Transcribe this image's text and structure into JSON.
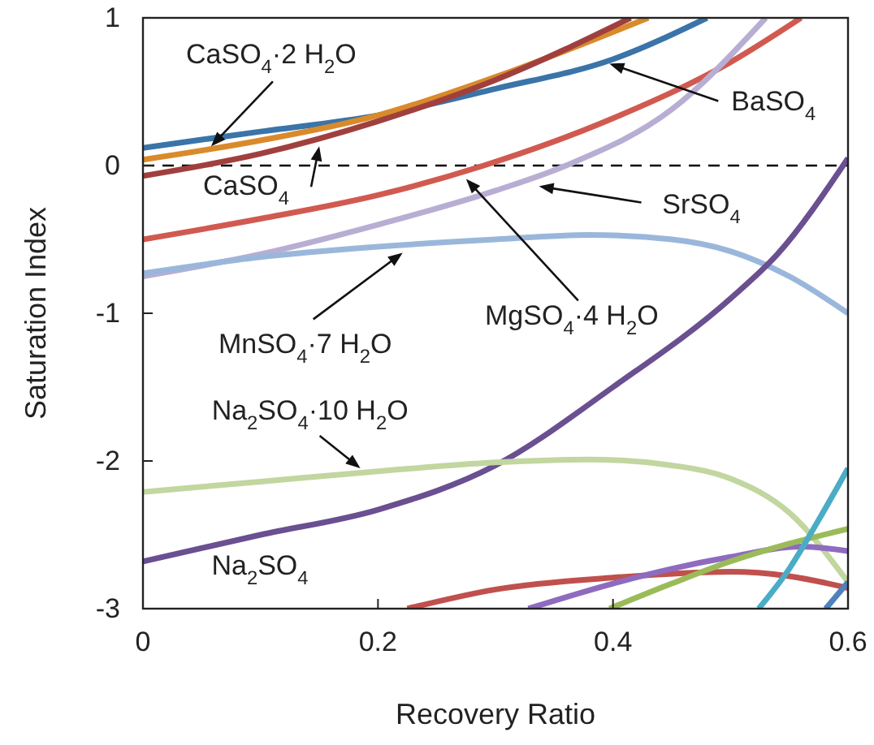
{
  "chart_data": {
    "type": "line",
    "xlabel": "Recovery Ratio",
    "ylabel": "Saturation Index",
    "xlim": [
      0,
      0.6
    ],
    "ylim": [
      -3,
      1
    ],
    "xticks": [
      0,
      0.2,
      0.4,
      0.6
    ],
    "yticks": [
      -3,
      -2,
      -1,
      0,
      1
    ],
    "grid": false,
    "marker": "none",
    "line_style": "solid",
    "ref_lines": [
      {
        "axis": "y",
        "value": 0,
        "color": "#000000",
        "line_style": "dashed"
      }
    ],
    "series": [
      {
        "color": "#3a74a8",
        "x": [
          0,
          0.1,
          0.2,
          0.3,
          0.4,
          0.48
        ],
        "values": [
          0.12,
          0.23,
          0.34,
          0.52,
          0.72,
          1
        ]
      },
      {
        "color": "#d98a2b",
        "x": [
          0,
          0.1,
          0.2,
          0.3,
          0.43
        ],
        "values": [
          0.04,
          0.17,
          0.34,
          0.6,
          1
        ]
      },
      {
        "color": "#a0403e",
        "x": [
          0,
          0.1,
          0.2,
          0.3,
          0.415
        ],
        "values": [
          -0.07,
          0.08,
          0.3,
          0.58,
          1
        ]
      },
      {
        "color": "#d15a50",
        "x": [
          0,
          0.1,
          0.2,
          0.29,
          0.4,
          0.5,
          0.56
        ],
        "values": [
          -0.5,
          -0.36,
          -0.2,
          0,
          0.32,
          0.7,
          1
        ]
      },
      {
        "color": "#b8aed3",
        "x": [
          0,
          0.1,
          0.2,
          0.3,
          0.36,
          0.45,
          0.53
        ],
        "values": [
          -0.75,
          -0.6,
          -0.4,
          -0.17,
          0,
          0.38,
          1
        ]
      },
      {
        "color": "#9ab7db",
        "x": [
          0,
          0.1,
          0.2,
          0.3,
          0.38,
          0.45,
          0.5,
          0.55,
          0.6
        ],
        "values": [
          -0.73,
          -0.62,
          -0.55,
          -0.5,
          -0.47,
          -0.5,
          -0.58,
          -0.75,
          -1
        ]
      },
      {
        "color": "#6a4f91",
        "x": [
          0,
          0.1,
          0.2,
          0.3,
          0.4,
          0.5,
          0.54,
          0.6
        ],
        "values": [
          -2.68,
          -2.5,
          -2.33,
          -2.03,
          -1.5,
          -0.9,
          -0.6,
          0.05
        ]
      },
      {
        "color": "#c2d6a0",
        "x": [
          0,
          0.1,
          0.2,
          0.3,
          0.38,
          0.45,
          0.5,
          0.55,
          0.6
        ],
        "values": [
          -2.21,
          -2.14,
          -2.07,
          -2.01,
          -1.99,
          -2.03,
          -2.12,
          -2.35,
          -2.82
        ]
      },
      {
        "color": "#c0504d",
        "x": [
          0.225,
          0.3,
          0.4,
          0.5,
          0.55,
          0.6
        ],
        "values": [
          -3,
          -2.87,
          -2.79,
          -2.75,
          -2.78,
          -2.86
        ]
      },
      {
        "color": "#8e6bbf",
        "x": [
          0.328,
          0.4,
          0.45,
          0.5,
          0.56,
          0.6
        ],
        "values": [
          -3,
          -2.83,
          -2.73,
          -2.65,
          -2.58,
          -2.61
        ]
      },
      {
        "color": "#9bbb59",
        "x": [
          0.397,
          0.45,
          0.5,
          0.55,
          0.6
        ],
        "values": [
          -3,
          -2.83,
          -2.68,
          -2.56,
          -2.46
        ]
      },
      {
        "color": "#4bacc6",
        "x": [
          0.524,
          0.55,
          0.575,
          0.6
        ],
        "values": [
          -3,
          -2.73,
          -2.4,
          -2.05
        ]
      },
      {
        "color": "#4f81bd",
        "x": [
          0.581,
          0.6
        ],
        "values": [
          -3,
          -2.82
        ]
      }
    ],
    "annotations": [
      {
        "text": "CaSO$_{4}$·2 H$_{2}$O",
        "x": 0.058,
        "y": 0.13
      },
      {
        "text": "CaSO$_{4}$",
        "x": 0.15,
        "y": 0.13
      },
      {
        "text": "BaSO$_{4}$",
        "x": 0.397,
        "y": 0.69
      },
      {
        "text": "SrSO$_{4}$",
        "x": 0.337,
        "y": -0.14
      },
      {
        "text": "MgSO$_{4}$·4 H$_{2}$O",
        "x": 0.275,
        "y": -0.09
      },
      {
        "text": "MnSO$_{4}$·7 H$_{2}$O",
        "x": 0.221,
        "y": -0.59
      },
      {
        "text": "Na$_{2}$SO$_{4}$·10 H$_{2}$O",
        "x": 0.185,
        "y": -2.05
      },
      "Na$_{2}$SO$_{4}$"
    ]
  }
}
